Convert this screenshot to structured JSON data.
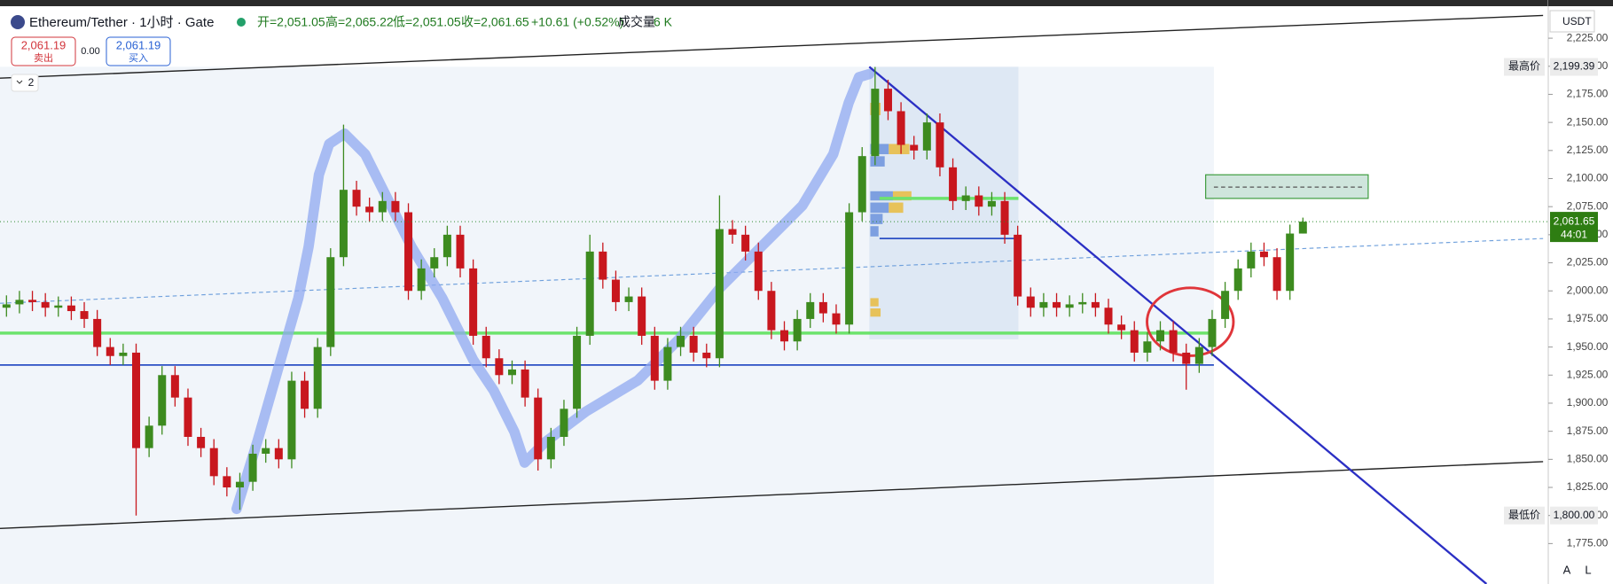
{
  "chart_data": {
    "type": "candlestick",
    "title": "Ethereum/Tether · 1小时 · Gate",
    "header_items": [
      "开=2,051.05",
      "高=2,065.22",
      "低=2,051.05",
      "收=2,061.65",
      "+10.61 (+0.52%)",
      "成交量",
      "6 K"
    ],
    "sell": {
      "price": "2,061.19",
      "label": "卖出"
    },
    "spread": "0.00",
    "buy": {
      "price": "2,061.19",
      "label": "买入"
    },
    "layers": "2",
    "currency": "USDT",
    "up_color": "#3d8b1f",
    "down_color": "#c8171e",
    "open": [
      1985,
      1988,
      1992,
      1990,
      1985,
      1987,
      1982,
      1975,
      1950,
      1942,
      1945,
      1860,
      1880,
      1925,
      1905,
      1870,
      1860,
      1835,
      1825,
      1830,
      1855,
      1860,
      1850,
      1920,
      1895,
      1950,
      2030,
      2090,
      2075,
      2070,
      2080,
      2070,
      2000,
      2020,
      2030,
      2050,
      2020,
      1960,
      1940,
      1925,
      1930,
      1905,
      1850,
      1870,
      1895,
      1960,
      2035,
      2010,
      1990,
      1995,
      1960,
      1920,
      1950,
      1960,
      1945,
      1940,
      2055,
      2050,
      2035,
      2000,
      1965,
      1955,
      1975,
      1990,
      1980,
      1970,
      2070,
      2120,
      2180,
      2160,
      2130,
      2125,
      2150,
      2110,
      2080,
      2085,
      2075,
      2080,
      2050,
      1995,
      1985,
      1990,
      1985,
      1988,
      1990,
      1985,
      1970,
      1965,
      1945,
      1955,
      1965,
      1945,
      1935,
      1950,
      1975,
      2000,
      2020,
      2035,
      2030,
      2000,
      2051.05
    ],
    "high": [
      1996,
      2000,
      2000,
      1998,
      1995,
      1995,
      1990,
      1983,
      1958,
      1953,
      1953,
      1888,
      1933,
      1933,
      1913,
      1878,
      1868,
      1843,
      1838,
      1863,
      1868,
      1868,
      1928,
      1928,
      1958,
      2038,
      2148,
      2098,
      2083,
      2088,
      2088,
      2078,
      2028,
      2038,
      2058,
      2058,
      2028,
      1968,
      1948,
      1938,
      1938,
      1913,
      1878,
      1903,
      1968,
      2050,
      2043,
      2018,
      2003,
      2003,
      1968,
      1958,
      1968,
      1968,
      1953,
      2085,
      2063,
      2058,
      2043,
      2008,
      1973,
      1983,
      1998,
      1998,
      1988,
      2078,
      2128,
      2199.39,
      2188,
      2168,
      2138,
      2158,
      2158,
      2118,
      2093,
      2093,
      2088,
      2088,
      2058,
      2003,
      1998,
      1998,
      1996,
      1998,
      1998,
      1993,
      1978,
      1973,
      1963,
      1973,
      1973,
      1953,
      1958,
      1983,
      2008,
      2028,
      2043,
      2043,
      2038,
      2059,
      2065.22
    ],
    "low": [
      1977,
      1980,
      1982,
      1977,
      1977,
      1974,
      1967,
      1942,
      1934,
      1934,
      1800,
      1852,
      1872,
      1897,
      1862,
      1852,
      1827,
      1817,
      1805,
      1822,
      1847,
      1842,
      1842,
      1887,
      1887,
      1942,
      2022,
      2067,
      2062,
      2062,
      2062,
      1992,
      1992,
      2012,
      2022,
      2012,
      1952,
      1932,
      1917,
      1917,
      1897,
      1840,
      1842,
      1862,
      1887,
      1952,
      2002,
      1982,
      1982,
      1952,
      1912,
      1912,
      1942,
      1937,
      1932,
      1932,
      2042,
      2027,
      1992,
      1957,
      1947,
      1947,
      1967,
      1972,
      1962,
      1962,
      2062,
      2112,
      2152,
      2122,
      2117,
      2117,
      2102,
      2072,
      2072,
      2067,
      2067,
      2042,
      1987,
      1977,
      1977,
      1977,
      1977,
      1980,
      1977,
      1962,
      1957,
      1937,
      1937,
      1947,
      1937,
      1912,
      1927,
      1942,
      1967,
      1992,
      2012,
      2022,
      1992,
      1992,
      2051.05
    ],
    "close": [
      1988,
      1992,
      1990,
      1985,
      1987,
      1982,
      1975,
      1950,
      1942,
      1945,
      1860,
      1880,
      1925,
      1905,
      1870,
      1860,
      1835,
      1825,
      1830,
      1855,
      1860,
      1850,
      1920,
      1895,
      1950,
      2030,
      2090,
      2075,
      2070,
      2080,
      2070,
      2000,
      2020,
      2030,
      2050,
      2020,
      1960,
      1940,
      1925,
      1930,
      1905,
      1850,
      1870,
      1895,
      1960,
      2035,
      2010,
      1990,
      1995,
      1960,
      1920,
      1950,
      1960,
      1945,
      1940,
      2055,
      2050,
      2035,
      2000,
      1965,
      1955,
      1975,
      1990,
      1980,
      1970,
      2070,
      2120,
      2180,
      2160,
      2130,
      2125,
      2150,
      2110,
      2080,
      2085,
      2075,
      2080,
      2050,
      1995,
      1985,
      1990,
      1985,
      1988,
      1990,
      1985,
      1970,
      1965,
      1945,
      1955,
      1965,
      1945,
      1935,
      1950,
      1975,
      2000,
      2020,
      2035,
      2030,
      2000,
      2051.05,
      2061.65
    ],
    "ylim": [
      1739,
      2259
    ],
    "yticks": [
      {
        "value": 1775,
        "label": "1,775.00"
      },
      {
        "value": 1800,
        "label": "1,800.00"
      },
      {
        "value": 1825,
        "label": "1,825.00"
      },
      {
        "value": 1850,
        "label": "1,850.00"
      },
      {
        "value": 1875,
        "label": "1,875.00"
      },
      {
        "value": 1900,
        "label": "1,900.00"
      },
      {
        "value": 1925,
        "label": "1,925.00"
      },
      {
        "value": 1950,
        "label": "1,950.00"
      },
      {
        "value": 1975,
        "label": "1,975.00"
      },
      {
        "value": 2000,
        "label": "2,000.00"
      },
      {
        "value": 2025,
        "label": "2,025.00"
      },
      {
        "value": 2050,
        "label": "2,050.00"
      },
      {
        "value": 2075,
        "label": "2,075.00"
      },
      {
        "value": 2100,
        "label": "2,100.00"
      },
      {
        "value": 2125,
        "label": "2,125.00"
      },
      {
        "value": 2150,
        "label": "2,150.00"
      },
      {
        "value": 2175,
        "label": "2,175.00"
      },
      {
        "value": 2200,
        "label": "2,200.00"
      },
      {
        "value": 2225,
        "label": "2,225.00"
      }
    ],
    "grid": false,
    "last_price_label": "2,061.65",
    "countdown": "44:01",
    "max_marker": {
      "title": "最高价",
      "value": 2199.39,
      "label": "2,199.39"
    },
    "min_marker": {
      "title": "最低价",
      "value": 1800,
      "label": "1,800.00"
    },
    "scale_buttons": [
      "A",
      "L"
    ]
  }
}
